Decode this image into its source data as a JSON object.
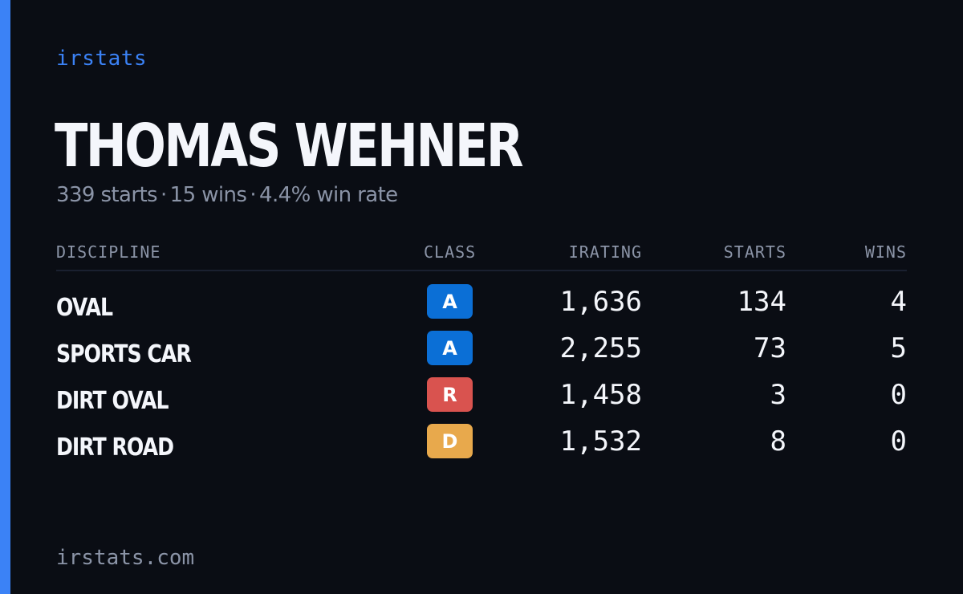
{
  "brand": "irstats",
  "player": {
    "name": "THOMAS WEHNER",
    "starts_text": "339 starts",
    "wins_text": "15 wins",
    "win_rate_text": "4.4% win rate",
    "separator": "·"
  },
  "table": {
    "headers": {
      "discipline": "DISCIPLINE",
      "class": "CLASS",
      "irating": "IRATING",
      "starts": "STARTS",
      "wins": "WINS"
    },
    "rows": [
      {
        "discipline": "OVAL",
        "class": "A",
        "class_color": "#0b6fd6",
        "irating": "1,636",
        "starts": "134",
        "wins": "4"
      },
      {
        "discipline": "SPORTS CAR",
        "class": "A",
        "class_color": "#0b6fd6",
        "irating": "2,255",
        "starts": "73",
        "wins": "5"
      },
      {
        "discipline": "DIRT OVAL",
        "class": "R",
        "class_color": "#d9534f",
        "irating": "1,458",
        "starts": "3",
        "wins": "0"
      },
      {
        "discipline": "DIRT ROAD",
        "class": "D",
        "class_color": "#e8a94c",
        "irating": "1,532",
        "starts": "8",
        "wins": "0"
      }
    ]
  },
  "footer": {
    "url": "irstats.com"
  },
  "colors": {
    "accent": "#3b82f6",
    "background": "#0a0d14",
    "text": "#f4f6fb",
    "muted": "#8b94a7"
  }
}
